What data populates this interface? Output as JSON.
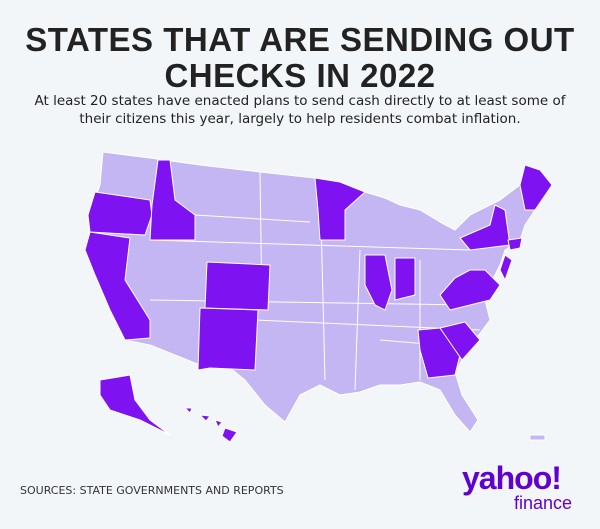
{
  "header": {
    "title": "STATES THAT ARE SENDING OUT CHECKS IN 2022",
    "subtitle": "At least 20 states have enacted plans to send cash directly to at least some of their citizens this year, largely to help residents combat inflation."
  },
  "footer": {
    "source": "SOURCES: STATE GOVERNMENTS AND REPORTS",
    "logo": "yahoo!",
    "logo_sub": "finance"
  }
}
